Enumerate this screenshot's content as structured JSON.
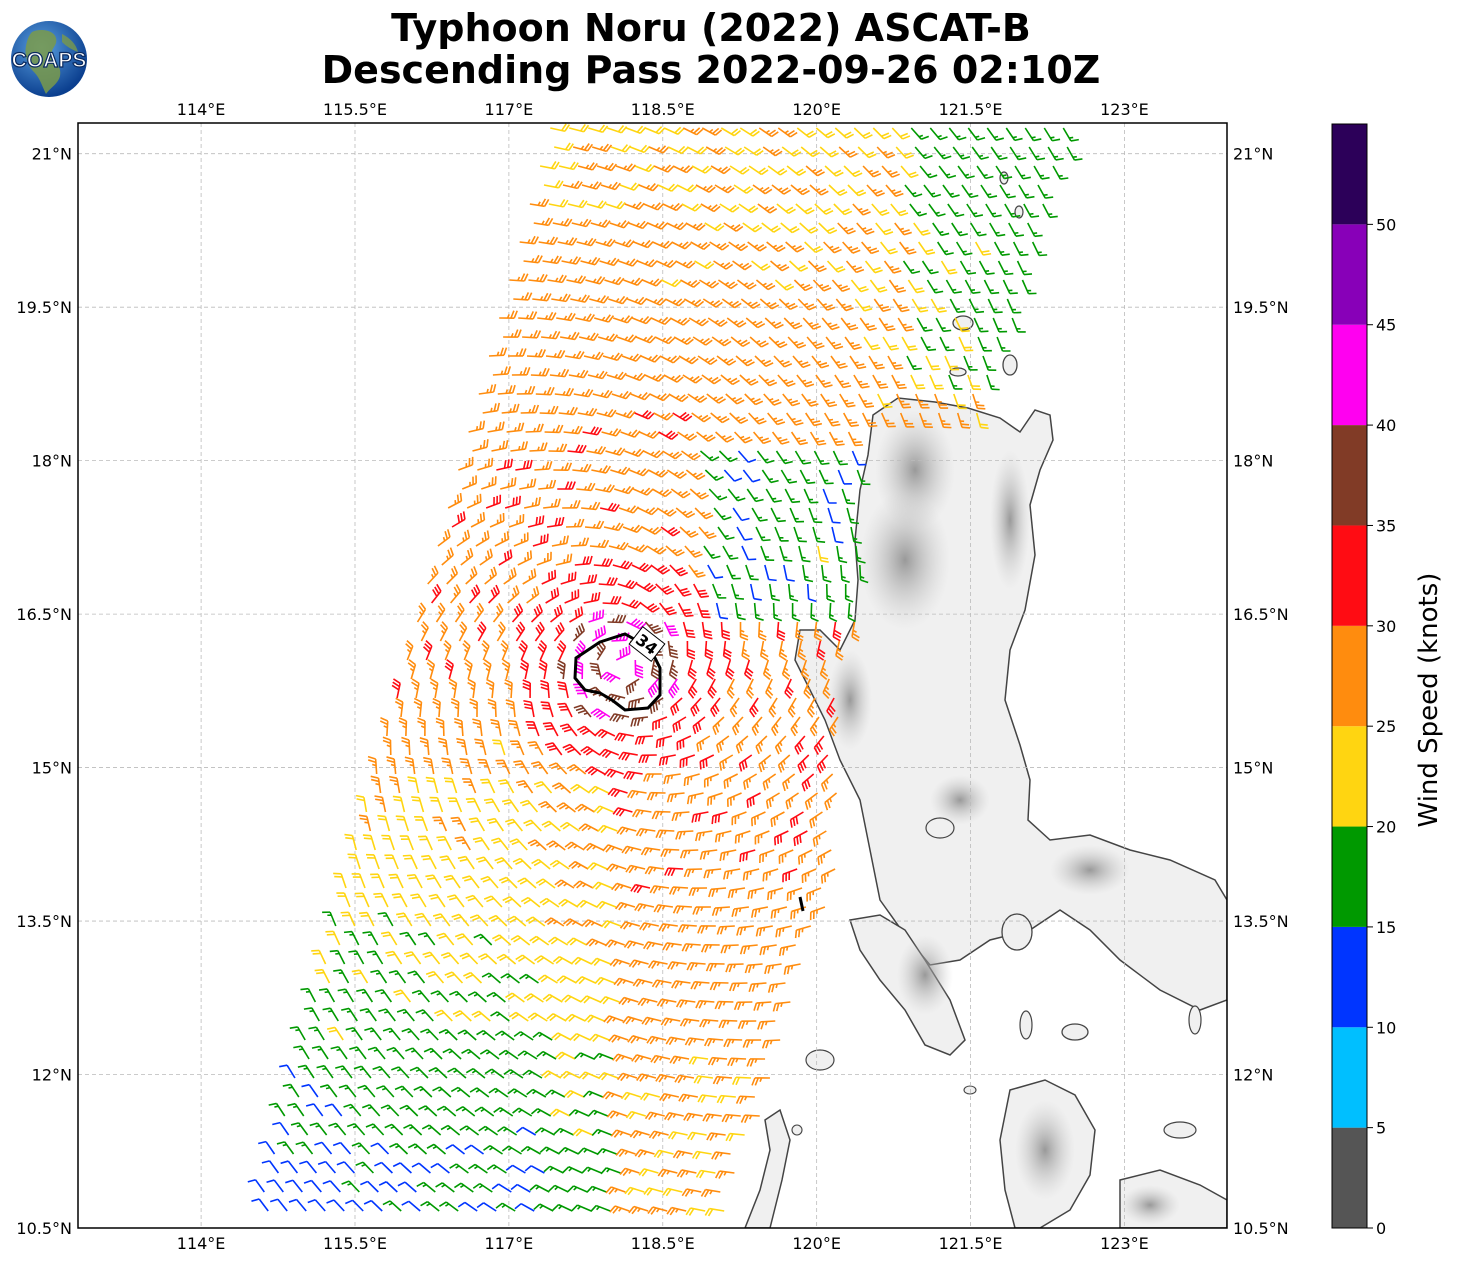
{
  "title": {
    "line1": "Typhoon Noru (2022) ASCAT-B",
    "line2": "Descending Pass 2022-09-26 02:10Z"
  },
  "logo": {
    "text": "COAPS"
  },
  "map": {
    "lon_ticks": [
      "114°E",
      "115.5°E",
      "117°E",
      "118.5°E",
      "120°E",
      "121.5°E",
      "123°E"
    ],
    "lon_values": [
      114,
      115.5,
      117,
      118.5,
      120,
      121.5,
      123
    ],
    "lat_ticks": [
      "21°N",
      "19.5°N",
      "18°N",
      "16.5°N",
      "15°N",
      "13.5°N",
      "12°N",
      "10.5°N"
    ],
    "lat_values": [
      21,
      19.5,
      18,
      16.5,
      15,
      13.5,
      12,
      10.5
    ],
    "extent": {
      "lon_min": 112.8,
      "lon_max": 124.0,
      "lat_min": 10.5,
      "lat_max": 21.3
    },
    "storm_center": {
      "lon": 118.1,
      "lat": 16.0
    },
    "contour_label": "34",
    "land_color": "#f0f0f0",
    "coast_color": "#444444"
  },
  "colorbar": {
    "label": "Wind Speed (knots)",
    "ticks": [
      "0",
      "5",
      "10",
      "15",
      "20",
      "25",
      "30",
      "35",
      "40",
      "45",
      "50"
    ],
    "tick_values": [
      0,
      5,
      10,
      15,
      20,
      25,
      30,
      35,
      40,
      45,
      50
    ],
    "max": 55,
    "bins": [
      {
        "from": 0,
        "to": 5,
        "color": "#555555"
      },
      {
        "from": 5,
        "to": 10,
        "color": "#00bfff"
      },
      {
        "from": 10,
        "to": 15,
        "color": "#0035ff"
      },
      {
        "from": 15,
        "to": 20,
        "color": "#009900"
      },
      {
        "from": 20,
        "to": 25,
        "color": "#ffd511"
      },
      {
        "from": 25,
        "to": 30,
        "color": "#ff8c0e"
      },
      {
        "from": 30,
        "to": 35,
        "color": "#ff0c13"
      },
      {
        "from": 35,
        "to": 40,
        "color": "#813b26"
      },
      {
        "from": 40,
        "to": 45,
        "color": "#ff00f0"
      },
      {
        "from": 45,
        "to": 50,
        "color": "#8800b8"
      },
      {
        "from": 50,
        "to": 55,
        "color": "#2c0059"
      }
    ]
  }
}
